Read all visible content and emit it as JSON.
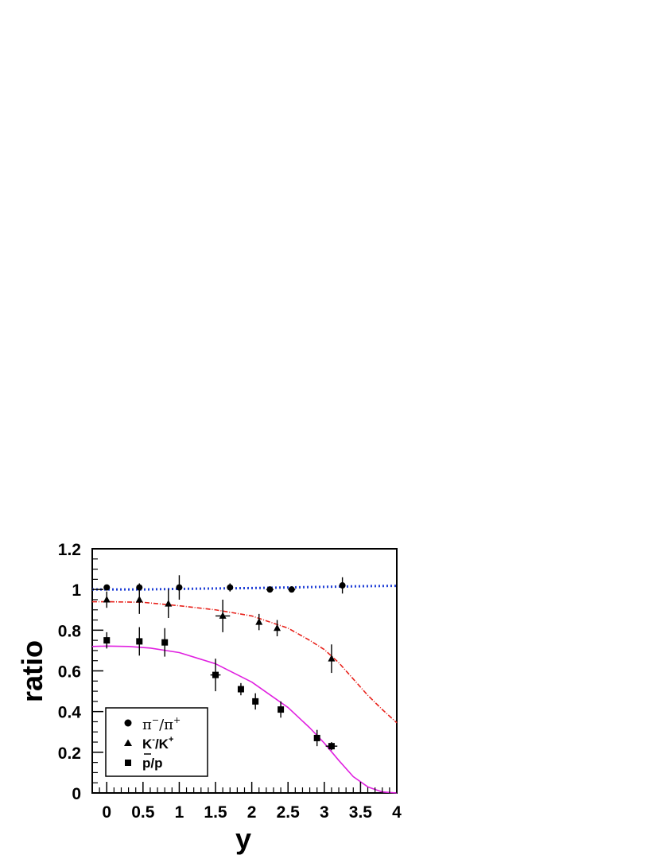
{
  "chart_data": {
    "type": "scatter",
    "xlabel": "y",
    "ylabel": "ratio",
    "xlim": [
      -0.2,
      4.0
    ],
    "ylim": [
      0,
      1.2
    ],
    "x_ticks": [
      "0",
      "0.5",
      "1",
      "1.5",
      "2",
      "2.5",
      "3",
      "3.5",
      "4"
    ],
    "y_ticks": [
      "0",
      "0.2",
      "0.4",
      "0.6",
      "0.8",
      "1",
      "1.2"
    ],
    "grid": false,
    "legend_position": "bottom-left",
    "series": [
      {
        "name": "π⁻/π⁺",
        "legend_main": "π",
        "legend_sup1": "−",
        "legend_sep": "/π",
        "legend_sup2": "+",
        "marker": "circle",
        "points": [
          {
            "x": 0.0,
            "y": 1.01,
            "ex": 0.0,
            "ey": 0.01
          },
          {
            "x": 0.45,
            "y": 1.01,
            "ex": 0.0,
            "ey": 0.02
          },
          {
            "x": 1.0,
            "y": 1.01,
            "ex": 0.0,
            "ey": 0.06
          },
          {
            "x": 1.7,
            "y": 1.01,
            "ex": 0.0,
            "ey": 0.02
          },
          {
            "x": 2.25,
            "y": 1.0,
            "ex": 0.05,
            "ey": 0.0
          },
          {
            "x": 2.55,
            "y": 1.0,
            "ex": 0.05,
            "ey": 0.0
          },
          {
            "x": 3.25,
            "y": 1.02,
            "ex": 0.0,
            "ey": 0.04
          }
        ]
      },
      {
        "name": "K⁻/K⁺",
        "legend_main": "K",
        "legend_sup1": "-",
        "legend_sep": "/K",
        "legend_sup2": "+",
        "marker": "triangle",
        "points": [
          {
            "x": 0.0,
            "y": 0.95,
            "ex": 0.0,
            "ey": 0.04
          },
          {
            "x": 0.45,
            "y": 0.95,
            "ex": 0.0,
            "ey": 0.07
          },
          {
            "x": 0.85,
            "y": 0.93,
            "ex": 0.0,
            "ey": 0.07
          },
          {
            "x": 1.6,
            "y": 0.87,
            "ex": 0.1,
            "ey": 0.08
          },
          {
            "x": 2.1,
            "y": 0.84,
            "ex": 0.0,
            "ey": 0.04
          },
          {
            "x": 2.35,
            "y": 0.81,
            "ex": 0.0,
            "ey": 0.04
          },
          {
            "x": 3.1,
            "y": 0.66,
            "ex": 0.0,
            "ey": 0.07
          }
        ]
      },
      {
        "name": "p̄/p",
        "legend_main": "p",
        "legend_bar": true,
        "legend_sep": "/p",
        "marker": "square",
        "points": [
          {
            "x": 0.0,
            "y": 0.75,
            "ex": 0.0,
            "ey": 0.04
          },
          {
            "x": 0.45,
            "y": 0.745,
            "ex": 0.0,
            "ey": 0.07
          },
          {
            "x": 0.8,
            "y": 0.74,
            "ex": 0.0,
            "ey": 0.07
          },
          {
            "x": 1.5,
            "y": 0.58,
            "ex": 0.07,
            "ey": 0.08
          },
          {
            "x": 1.85,
            "y": 0.51,
            "ex": 0.0,
            "ey": 0.03
          },
          {
            "x": 2.05,
            "y": 0.45,
            "ex": 0.0,
            "ey": 0.04
          },
          {
            "x": 2.4,
            "y": 0.41,
            "ex": 0.0,
            "ey": 0.04
          },
          {
            "x": 2.9,
            "y": 0.27,
            "ex": 0.0,
            "ey": 0.04
          },
          {
            "x": 3.1,
            "y": 0.23,
            "ex": 0.08,
            "ey": 0.02
          }
        ]
      }
    ],
    "curves": [
      {
        "style": "dotted",
        "color": "#1f3fd6",
        "points": [
          [
            -0.2,
            1.0
          ],
          [
            0.5,
            1.0
          ],
          [
            1.0,
            1.003
          ],
          [
            1.5,
            1.005
          ],
          [
            2.0,
            1.007
          ],
          [
            2.5,
            1.01
          ],
          [
            3.0,
            1.013
          ],
          [
            3.5,
            1.016
          ],
          [
            4.0,
            1.018
          ]
        ]
      },
      {
        "style": "dash-dot",
        "color": "#e8221b",
        "points": [
          [
            -0.2,
            0.94
          ],
          [
            0.0,
            0.94
          ],
          [
            0.5,
            0.937
          ],
          [
            1.0,
            0.92
          ],
          [
            1.5,
            0.9
          ],
          [
            2.0,
            0.87
          ],
          [
            2.5,
            0.81
          ],
          [
            2.8,
            0.75
          ],
          [
            3.0,
            0.705
          ],
          [
            3.2,
            0.64
          ],
          [
            3.4,
            0.56
          ],
          [
            3.6,
            0.48
          ],
          [
            3.8,
            0.41
          ],
          [
            4.0,
            0.345
          ]
        ]
      },
      {
        "style": "solid",
        "color": "#e020e0",
        "points": [
          [
            -0.2,
            0.72
          ],
          [
            0.0,
            0.722
          ],
          [
            0.3,
            0.72
          ],
          [
            0.6,
            0.712
          ],
          [
            1.0,
            0.69
          ],
          [
            1.5,
            0.635
          ],
          [
            2.0,
            0.545
          ],
          [
            2.5,
            0.42
          ],
          [
            2.8,
            0.32
          ],
          [
            3.0,
            0.245
          ],
          [
            3.2,
            0.16
          ],
          [
            3.4,
            0.08
          ],
          [
            3.6,
            0.03
          ],
          [
            3.8,
            0.005
          ],
          [
            4.0,
            0.0
          ]
        ]
      }
    ]
  }
}
